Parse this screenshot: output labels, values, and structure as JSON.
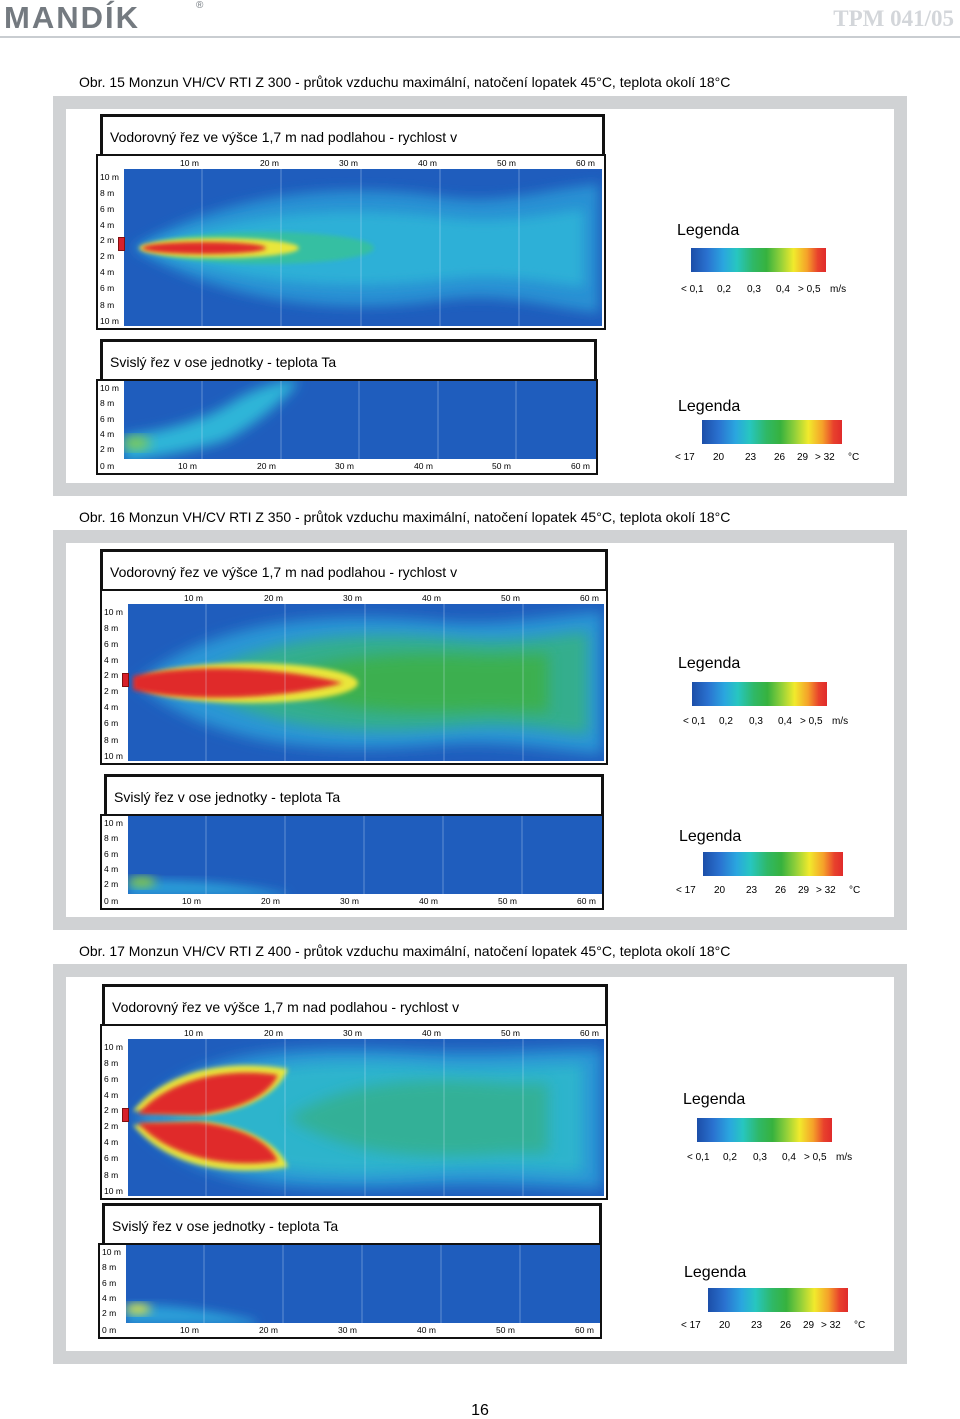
{
  "header": {
    "logo": "MANDÍK",
    "logo_mark": "®",
    "doc_code": "TPM 041/05"
  },
  "colors": {
    "panel_gray": "#d0d2d4",
    "field_blue": "#1f5dbd",
    "jet_red": "#e02b2b",
    "text": "#000000"
  },
  "figures": [
    {
      "caption": "Obr. 15  Monzun VH/CV RTI Z 300 - průtok vzduchu maximální, natočení lopatek 45°C, teplota okolí 18°C",
      "horizontal": {
        "title": "Vodorovný řez ve výšce 1,7 m nad podlahou - rychlost v",
        "x_ticks": [
          "10 m",
          "20 m",
          "30 m",
          "40 m",
          "50 m",
          "60 m"
        ],
        "y_ticks": [
          "10 m",
          "8 m",
          "6 m",
          "4 m",
          "2 m",
          "2 m",
          "4 m",
          "6 m",
          "8 m",
          "10 m"
        ],
        "legend_title": "Legenda",
        "legend_labels": [
          "< 0,1",
          "0,2",
          "0,3",
          "0,4",
          "> 0,5",
          "m/s"
        ]
      },
      "vertical": {
        "title": "Svislý řez v ose jednotky - teplota Ta",
        "x_ticks": [
          "0 m",
          "10 m",
          "20 m",
          "30 m",
          "40 m",
          "50 m",
          "60 m"
        ],
        "y_ticks": [
          "10 m",
          "8 m",
          "6 m",
          "4 m",
          "2 m"
        ],
        "legend_title": "Legenda",
        "legend_labels": [
          "< 17",
          "20",
          "23",
          "26",
          "29",
          "> 32",
          "°C"
        ]
      }
    },
    {
      "caption": "Obr. 16  Monzun VH/CV RTI Z 350 - průtok vzduchu maximální, natočení lopatek 45°C, teplota okolí 18°C",
      "horizontal": {
        "title": "Vodorovný řez ve výšce 1,7 m nad podlahou - rychlost v",
        "x_ticks": [
          "10 m",
          "20 m",
          "30 m",
          "40 m",
          "50 m",
          "60 m"
        ],
        "y_ticks": [
          "10 m",
          "8 m",
          "6 m",
          "4 m",
          "2 m",
          "2 m",
          "4 m",
          "6 m",
          "8 m",
          "10 m"
        ],
        "legend_title": "Legenda",
        "legend_labels": [
          "< 0,1",
          "0,2",
          "0,3",
          "0,4",
          "> 0,5",
          "m/s"
        ]
      },
      "vertical": {
        "title": "Svislý řez v ose jednotky - teplota Ta",
        "x_ticks": [
          "0 m",
          "10 m",
          "20 m",
          "30 m",
          "40 m",
          "50 m",
          "60 m"
        ],
        "y_ticks": [
          "10 m",
          "8 m",
          "6 m",
          "4 m",
          "2 m"
        ],
        "legend_title": "Legenda",
        "legend_labels": [
          "< 17",
          "20",
          "23",
          "26",
          "29",
          "> 32",
          "°C"
        ]
      }
    },
    {
      "caption": "Obr. 17  Monzun VH/CV RTI Z 400 - průtok vzduchu maximální, natočení lopatek 45°C, teplota okolí 18°C",
      "horizontal": {
        "title": "Vodorovný řez ve výšce 1,7 m nad podlahou - rychlost v",
        "x_ticks": [
          "10 m",
          "20 m",
          "30 m",
          "40 m",
          "50 m",
          "60 m"
        ],
        "y_ticks": [
          "10 m",
          "8 m",
          "6 m",
          "4 m",
          "2 m",
          "2 m",
          "4 m",
          "6 m",
          "8 m",
          "10 m"
        ],
        "legend_title": "Legenda",
        "legend_labels": [
          "< 0,1",
          "0,2",
          "0,3",
          "0,4",
          "> 0,5",
          "m/s"
        ]
      },
      "vertical": {
        "title": "Svislý řez v ose jednotky - teplota Ta",
        "x_ticks": [
          "0 m",
          "10 m",
          "20 m",
          "30 m",
          "40 m",
          "50 m",
          "60 m"
        ],
        "y_ticks": [
          "10 m",
          "8 m",
          "6 m",
          "4 m",
          "2 m"
        ],
        "legend_title": "Legenda",
        "legend_labels": [
          "< 17",
          "20",
          "23",
          "26",
          "29",
          "> 32",
          "°C"
        ]
      }
    }
  ],
  "page_number": "16"
}
